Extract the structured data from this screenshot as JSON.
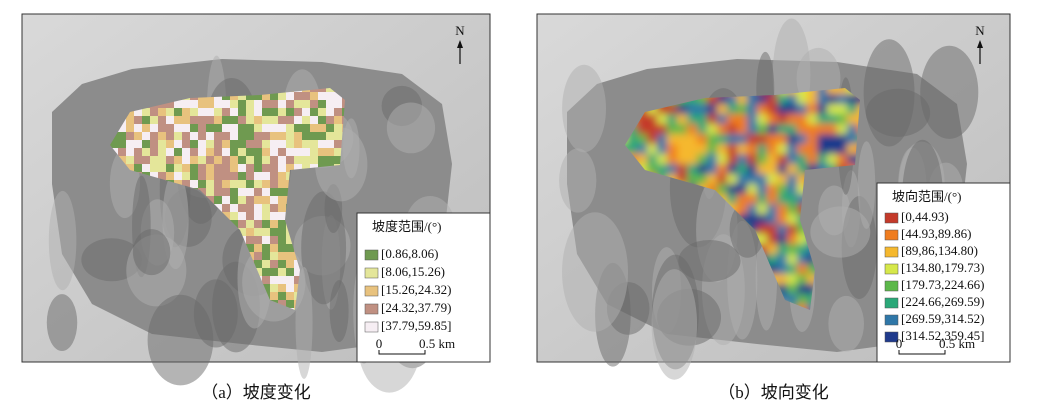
{
  "panels": [
    {
      "caption": "（a）坡度变化",
      "north": "N",
      "legend": {
        "title": "坡度范围/(°)",
        "items": [
          {
            "label": "[0.86,8.06)",
            "color": "#6f9a50"
          },
          {
            "label": "[8.06,15.26)",
            "color": "#e4e69a"
          },
          {
            "label": "[15.26,24.32)",
            "color": "#e8c27e"
          },
          {
            "label": "[24.32,37.79)",
            "color": "#c09082"
          },
          {
            "label": "[37.79,59.85]",
            "color": "#f6eef3"
          }
        ]
      },
      "scale_bar": {
        "start": "0",
        "end": "0.5 km"
      }
    },
    {
      "caption": "（b）坡向变化",
      "north": "N",
      "legend": {
        "title": "坡向范围/(°)",
        "items": [
          {
            "label": "[0,44.93)",
            "color": "#c43a2a"
          },
          {
            "label": "[44.93,89.86)",
            "color": "#f07d1f"
          },
          {
            "label": "[89,86,134.80)",
            "color": "#f5b82e"
          },
          {
            "label": "[134.80,179.73)",
            "color": "#d6e84a"
          },
          {
            "label": "[179.73,224.66)",
            "color": "#5cb84a"
          },
          {
            "label": "[224.66,269.59)",
            "color": "#2aa878"
          },
          {
            "label": "[269.59,314.52)",
            "color": "#2f77a8"
          },
          {
            "label": "[314.52,359.45]",
            "color": "#1f3a8c"
          }
        ]
      },
      "scale_bar": {
        "start": "0",
        "end": "0.5 km"
      }
    }
  ]
}
